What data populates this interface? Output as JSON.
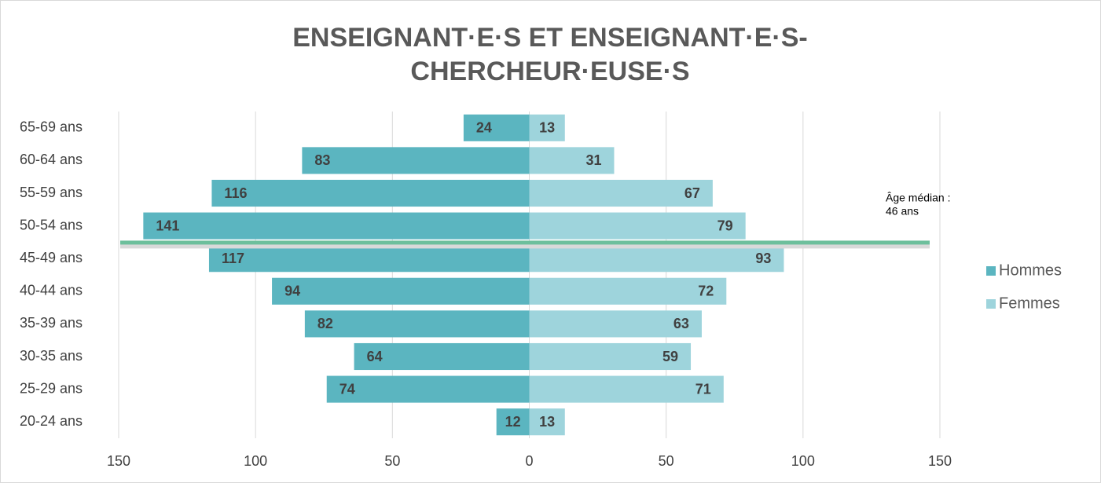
{
  "chart_data": {
    "type": "pyramid",
    "title": [
      "ENSEIGNANT·E·S ET ENSEIGNANT·E·S-",
      "CHERCHEUR·EUSE·S"
    ],
    "categories": [
      "20-24 ans",
      "25-29 ans",
      "30-35 ans",
      "35-39 ans",
      "40-44 ans",
      "45-49 ans",
      "50-54 ans",
      "55-59 ans",
      "60-64 ans",
      "65-69 ans"
    ],
    "series": [
      {
        "name": "Hommes",
        "color": "#5bb5c0",
        "values": [
          12,
          74,
          64,
          82,
          94,
          117,
          141,
          116,
          83,
          24
        ]
      },
      {
        "name": "Femmes",
        "color": "#9ed4dc",
        "values": [
          13,
          71,
          59,
          63,
          72,
          93,
          79,
          67,
          31,
          13
        ]
      }
    ],
    "xlim": [
      -150,
      150
    ],
    "xticks": [
      {
        "value": -150,
        "label": "150"
      },
      {
        "value": -100,
        "label": "100"
      },
      {
        "value": -50,
        "label": "50"
      },
      0,
      50,
      100,
      150
    ],
    "grid": true,
    "legend": "right",
    "annotation": [
      "Âge médian :",
      "46 ans"
    ],
    "median_line_color": "#6dbf9c"
  }
}
